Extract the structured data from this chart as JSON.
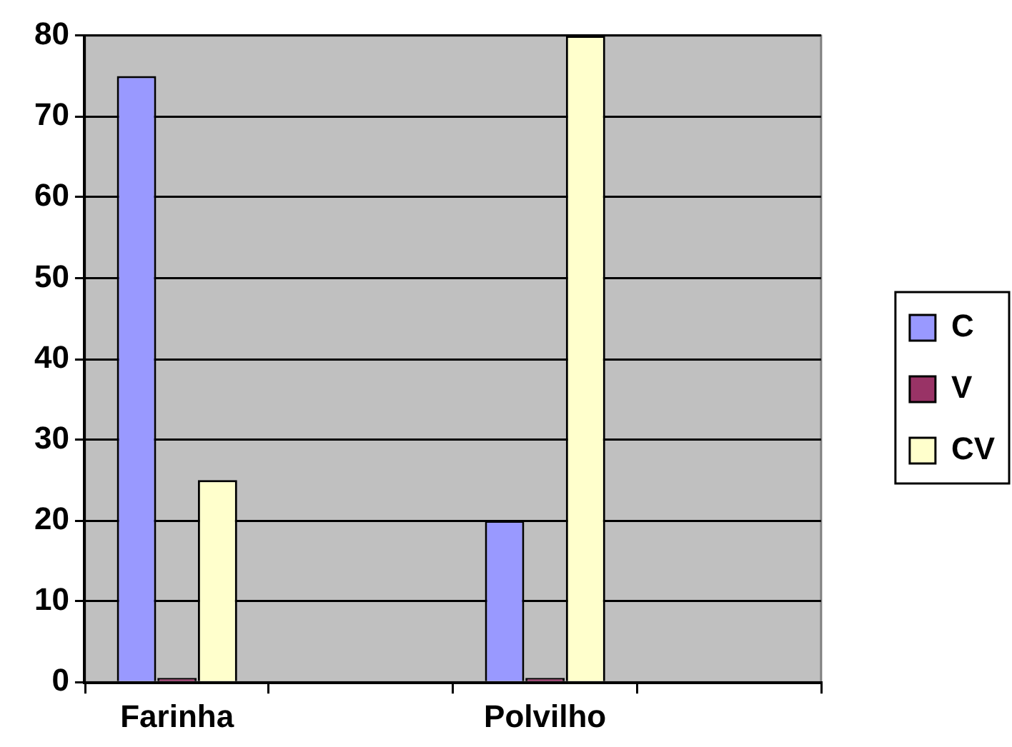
{
  "chart_data": {
    "type": "bar",
    "categories": [
      "Farinha",
      null,
      "Polvilho",
      null
    ],
    "series": [
      {
        "name": "C",
        "color": "#9999ff",
        "values": [
          75,
          null,
          20,
          null
        ]
      },
      {
        "name": "V",
        "color": "#993366",
        "values": [
          0,
          null,
          0,
          null
        ]
      },
      {
        "name": "CV",
        "color": "#ffffcc",
        "values": [
          25,
          null,
          80,
          null
        ]
      }
    ],
    "ylim": [
      0,
      80
    ],
    "yticks": [
      0,
      10,
      20,
      30,
      40,
      50,
      60,
      70,
      80
    ],
    "grid": "y",
    "legend": "right"
  }
}
